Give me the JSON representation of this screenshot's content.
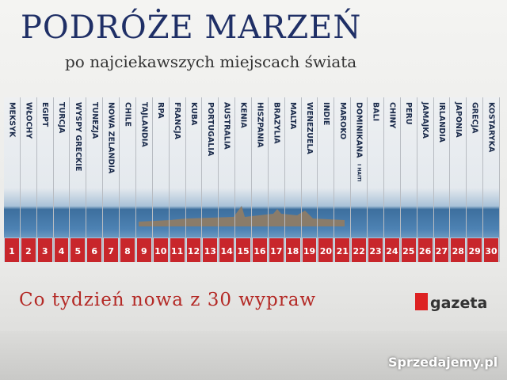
{
  "header": {
    "title": "PODRÓŻE MARZEŃ",
    "subtitle": "po najciekawszych miejscach świata"
  },
  "books": [
    {
      "label": "MEKSYK",
      "number": 1
    },
    {
      "label": "WŁOCHY",
      "number": 2
    },
    {
      "label": "EGIPT",
      "number": 3
    },
    {
      "label": "TURCJA",
      "number": 4
    },
    {
      "label": "WYSPY GRECKIE",
      "number": 5
    },
    {
      "label": "TUNEZJA",
      "number": 6
    },
    {
      "label": "NOWA ZELANDIA",
      "number": 7
    },
    {
      "label": "CHILE",
      "number": 8
    },
    {
      "label": "TAJLANDIA",
      "number": 9
    },
    {
      "label": "RPA",
      "number": 10
    },
    {
      "label": "FRANCJA",
      "number": 11
    },
    {
      "label": "KUBA",
      "number": 12
    },
    {
      "label": "PORTUGALIA",
      "number": 13
    },
    {
      "label": "AUSTRALIA",
      "number": 14
    },
    {
      "label": "KENIA",
      "number": 15
    },
    {
      "label": "HISZPANIA",
      "number": 16
    },
    {
      "label": "BRAZYLIA",
      "number": 17
    },
    {
      "label": "MALTA",
      "number": 18
    },
    {
      "label": "WENEZUELA",
      "number": 19
    },
    {
      "label": "INDIE",
      "number": 20
    },
    {
      "label": "MAROKO",
      "number": 21
    },
    {
      "label": "DOMINIKANA",
      "sublabel": "I HAITI",
      "number": 22
    },
    {
      "label": "BALI",
      "number": 23
    },
    {
      "label": "CHINY",
      "number": 24
    },
    {
      "label": "PERU",
      "number": 25
    },
    {
      "label": "JAMAJKA",
      "number": 26
    },
    {
      "label": "IRLANDIA",
      "number": 27
    },
    {
      "label": "JAPONIA",
      "number": 28
    },
    {
      "label": "GRECJA",
      "number": 29
    },
    {
      "label": "KOSTARYKA",
      "number": 30
    }
  ],
  "footer": {
    "slogan": "Co tydzień nowa z 30 wypraw",
    "brand": "gazeta"
  },
  "watermark": "Sprzedajemy.pl"
}
